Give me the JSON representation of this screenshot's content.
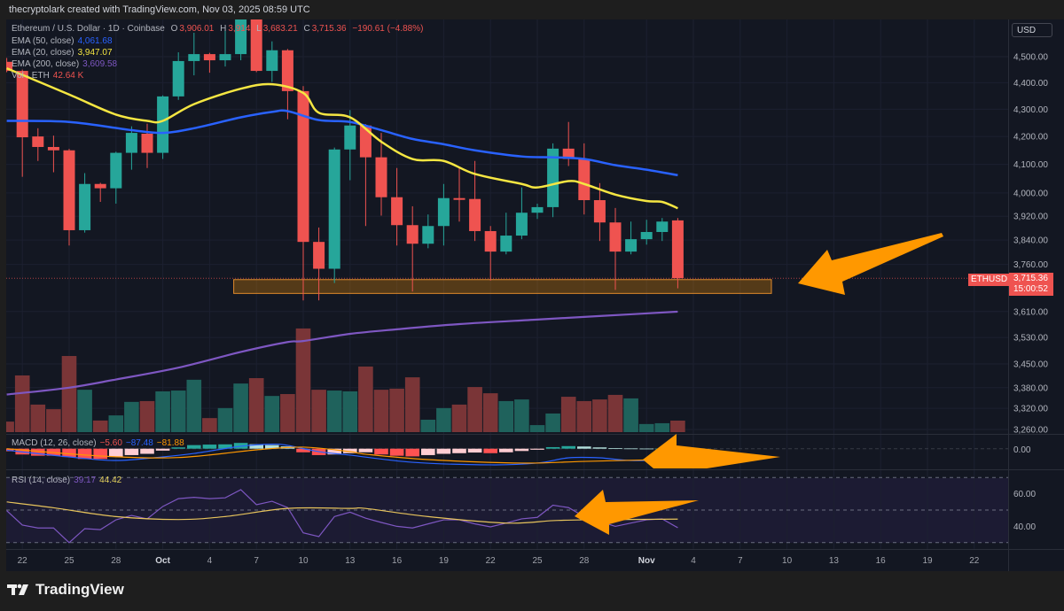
{
  "header": {
    "credit": "thecryptolark created with TradingView.com, Nov 03, 2025 08:59 UTC"
  },
  "legend": {
    "symbol": "Ethereum / U.S. Dollar · 1D · Coinbase",
    "open_label": "O",
    "open": "3,906.01",
    "high_label": "H",
    "high": "3,914",
    "low_label": "L",
    "low": "3,683.21",
    "close_label": "C",
    "close": "3,715.36",
    "change": "−190.61 (−4.88%)",
    "ema50_label": "EMA (50, close)",
    "ema50": "4,061.68",
    "ema20_label": "EMA (20, close)",
    "ema20": "3,947.07",
    "ema200_label": "EMA (200, close)",
    "ema200": "3,609.58",
    "vol_label": "Vol · ETH",
    "vol": "42.64 K",
    "macd_label": "MACD (12, 26, close)",
    "macd_hist": "−5.60",
    "macd_line": "−87.48",
    "macd_signal": "−81.88",
    "rsi_label": "RSI (14, close)",
    "rsi": "39.17",
    "rsi_ma": "44.42"
  },
  "currency": "USD",
  "price_tag": {
    "symbol": "ETHUSD",
    "price": "3,715.36",
    "countdown": "15:00:52"
  },
  "footer": {
    "brand": "TradingView"
  },
  "colors": {
    "up": "#26a69a",
    "down": "#ef5350",
    "ema20": "#f5e642",
    "ema50": "#2962ff",
    "ema200": "#7e57c2",
    "annotation": "#ff9800",
    "macd": "#2962ff",
    "signal": "#ff9800",
    "rsi": "#7e57c2",
    "rsi_ma": "#e6c35c"
  },
  "chart_data": {
    "type": "candlestick",
    "price_scale": "log",
    "dates": [
      "Sep 21",
      "Sep 22",
      "Sep 23",
      "Sep 24",
      "Sep 25",
      "Sep 26",
      "Sep 27",
      "Sep 28",
      "Sep 29",
      "Sep 30",
      "Oct 1",
      "Oct 2",
      "Oct 3",
      "Oct 4",
      "Oct 5",
      "Oct 6",
      "Oct 7",
      "Oct 8",
      "Oct 9",
      "Oct 10",
      "Oct 11",
      "Oct 12",
      "Oct 13",
      "Oct 14",
      "Oct 15",
      "Oct 16",
      "Oct 17",
      "Oct 18",
      "Oct 19",
      "Oct 20",
      "Oct 21",
      "Oct 22",
      "Oct 23",
      "Oct 24",
      "Oct 25",
      "Oct 26",
      "Oct 27",
      "Oct 28",
      "Oct 29",
      "Oct 30",
      "Oct 31",
      "Nov 1",
      "Nov 2",
      "Nov 3"
    ],
    "ohlc": [
      [
        4480,
        4495,
        4440,
        4445
      ],
      [
        4445,
        4450,
        4056,
        4197
      ],
      [
        4200,
        4230,
        4112,
        4162
      ],
      [
        4162,
        4203,
        4072,
        4150
      ],
      [
        4150,
        4155,
        3822,
        3873
      ],
      [
        3873,
        4069,
        3865,
        4031
      ],
      [
        4031,
        4035,
        3969,
        4016
      ],
      [
        4016,
        4145,
        3963,
        4141
      ],
      [
        4141,
        4237,
        4081,
        4213
      ],
      [
        4210,
        4247,
        4087,
        4141
      ],
      [
        4141,
        4352,
        4119,
        4348
      ],
      [
        4348,
        4517,
        4335,
        4483
      ],
      [
        4483,
        4594,
        4428,
        4510
      ],
      [
        4510,
        4515,
        4438,
        4486
      ],
      [
        4486,
        4605,
        4462,
        4510
      ],
      [
        4510,
        4682,
        4486,
        4654
      ],
      [
        4654,
        4675,
        4440,
        4445
      ],
      [
        4445,
        4560,
        4403,
        4525
      ],
      [
        4525,
        4530,
        4263,
        4368
      ],
      [
        4368,
        4387,
        3645,
        3834
      ],
      [
        3834,
        3882,
        3645,
        3746
      ],
      [
        3746,
        4160,
        3700,
        4153
      ],
      [
        4153,
        4297,
        4044,
        4240
      ],
      [
        4240,
        4245,
        3887,
        4125
      ],
      [
        4125,
        4213,
        3922,
        3985
      ],
      [
        3985,
        4087,
        3822,
        3890
      ],
      [
        3890,
        3954,
        3673,
        3828
      ],
      [
        3828,
        3926,
        3813,
        3887
      ],
      [
        3887,
        4031,
        3822,
        3982
      ],
      [
        3982,
        4087,
        3902,
        3976
      ],
      [
        3979,
        4112,
        3837,
        3870
      ],
      [
        3870,
        3887,
        3708,
        3802
      ],
      [
        3802,
        3932,
        3793,
        3855
      ],
      [
        3855,
        4019,
        3843,
        3932
      ],
      [
        3932,
        3963,
        3911,
        3951
      ],
      [
        3951,
        4175,
        3917,
        4156
      ],
      [
        4156,
        4253,
        4094,
        4119
      ],
      [
        4119,
        4175,
        3926,
        3975
      ],
      [
        3975,
        4034,
        3837,
        3899
      ],
      [
        3899,
        3948,
        3678,
        3802
      ],
      [
        3802,
        3902,
        3793,
        3843
      ],
      [
        3843,
        3908,
        3825,
        3867
      ],
      [
        3867,
        3914,
        3837,
        3902
      ],
      [
        3906.01,
        3914,
        3683.21,
        3715.36
      ]
    ],
    "volume_k": [
      39,
      210,
      102,
      85,
      282,
      157,
      43,
      62,
      112,
      115,
      151,
      154,
      194,
      52,
      89,
      180,
      200,
      134,
      141,
      384,
      157,
      154,
      151,
      243,
      157,
      161,
      203,
      46,
      89,
      102,
      167,
      144,
      115,
      121,
      26,
      69,
      131,
      115,
      121,
      138,
      125,
      30,
      33,
      42.64
    ],
    "ema20": [
      [
        "Sep 21",
        4455
      ],
      [
        "Sep 25",
        4355
      ],
      [
        "Sep 28",
        4280
      ],
      [
        "Sep 30",
        4257
      ],
      [
        "Oct 1",
        4257
      ],
      [
        "Oct 3",
        4319
      ],
      [
        "Oct 6",
        4377
      ],
      [
        "Oct 8",
        4394
      ],
      [
        "Oct 10",
        4361
      ],
      [
        "Oct 11",
        4287
      ],
      [
        "Oct 13",
        4270
      ],
      [
        "Oct 15",
        4181
      ],
      [
        "Oct 17",
        4119
      ],
      [
        "Oct 19",
        4112
      ],
      [
        "Oct 21",
        4066
      ],
      [
        "Oct 24",
        4031
      ],
      [
        "Oct 25",
        4019
      ],
      [
        "Oct 27",
        4041
      ],
      [
        "Oct 28",
        4031
      ],
      [
        "Oct 30",
        3994
      ],
      [
        "Nov 1",
        3972
      ],
      [
        "Nov 2",
        3969
      ],
      [
        "Nov 3",
        3947.07
      ]
    ],
    "ema50": [
      [
        "Sep 21",
        4257
      ],
      [
        "Sep 25",
        4253
      ],
      [
        "Sep 29",
        4223
      ],
      [
        "Oct 1",
        4213
      ],
      [
        "Oct 3",
        4230
      ],
      [
        "Oct 6",
        4270
      ],
      [
        "Oct 8",
        4290
      ],
      [
        "Oct 9",
        4293
      ],
      [
        "Oct 11",
        4260
      ],
      [
        "Oct 13",
        4253
      ],
      [
        "Oct 15",
        4223
      ],
      [
        "Oct 17",
        4191
      ],
      [
        "Oct 19",
        4172
      ],
      [
        "Oct 21",
        4150
      ],
      [
        "Oct 24",
        4128
      ],
      [
        "Oct 26",
        4125
      ],
      [
        "Oct 28",
        4119
      ],
      [
        "Oct 30",
        4097
      ],
      [
        "Nov 1",
        4081
      ],
      [
        "Nov 3",
        4061.68
      ]
    ],
    "ema200": [
      [
        "Sep 21",
        3360
      ],
      [
        "Sep 25",
        3380
      ],
      [
        "Sep 28",
        3404
      ],
      [
        "Oct 2",
        3439
      ],
      [
        "Oct 6",
        3486
      ],
      [
        "Oct 9",
        3516
      ],
      [
        "Oct 10",
        3519
      ],
      [
        "Oct 13",
        3541
      ],
      [
        "Oct 16",
        3555
      ],
      [
        "Oct 20",
        3571
      ],
      [
        "Oct 25",
        3585
      ],
      [
        "Oct 29",
        3596
      ],
      [
        "Nov 3",
        3609.58
      ]
    ],
    "macd_hist": [
      -20,
      -45,
      -55,
      -55,
      -65,
      -80,
      -80,
      -65,
      -50,
      -40,
      -15,
      10,
      28,
      32,
      34,
      45,
      35,
      28,
      18,
      -28,
      -50,
      -45,
      -35,
      -28,
      -45,
      -55,
      -60,
      -50,
      -40,
      -35,
      -30,
      -35,
      -28,
      -18,
      -8,
      12,
      20,
      17,
      10,
      4,
      2,
      1,
      1,
      -5.6
    ],
    "macd_line": [
      [
        "Sep 21",
        -12
      ],
      [
        "Sep 25",
        -64
      ],
      [
        "Sep 28",
        -92
      ],
      [
        "Oct 1",
        -64
      ],
      [
        "Oct 3",
        -37
      ],
      [
        "Oct 6",
        19
      ],
      [
        "Oct 8",
        35
      ],
      [
        "Oct 9",
        26
      ],
      [
        "Oct 11",
        -23
      ],
      [
        "Oct 13",
        -50
      ],
      [
        "Oct 17",
        -106
      ],
      [
        "Oct 22",
        -126
      ],
      [
        "Oct 25",
        -112
      ],
      [
        "Oct 27",
        -71
      ],
      [
        "Oct 29",
        -71
      ],
      [
        "Oct 31",
        -92
      ],
      [
        "Nov 3",
        -87.48
      ]
    ],
    "macd_signal": [
      [
        "Sep 21",
        0
      ],
      [
        "Sep 27",
        -57
      ],
      [
        "Oct 2",
        -69
      ],
      [
        "Oct 7",
        -9
      ],
      [
        "Oct 10",
        12
      ],
      [
        "Oct 13",
        -23
      ],
      [
        "Oct 14",
        -43
      ],
      [
        "Oct 18",
        -85
      ],
      [
        "Oct 24",
        -112
      ],
      [
        "Oct 28",
        -99
      ],
      [
        "Nov 3",
        -81.88
      ]
    ],
    "rsi": [
      49.6,
      40.8,
      39,
      39,
      30,
      38.6,
      38,
      44,
      46.7,
      44.6,
      52.2,
      57,
      57.8,
      57,
      57.5,
      62.5,
      53.3,
      55.4,
      51.5,
      36,
      33.7,
      46,
      48.7,
      45,
      42.4,
      40,
      39,
      41.5,
      44,
      44,
      41.5,
      39.7,
      42,
      44.6,
      45.5,
      53,
      51.5,
      46,
      43,
      40,
      42,
      44,
      44.6,
      39.17
    ],
    "rsi_ma": [
      [
        "Sep 21",
        55
      ],
      [
        "Sep 24",
        51.4
      ],
      [
        "Sep 28",
        46
      ],
      [
        "Oct 2",
        44.2
      ],
      [
        "Oct 5",
        46
      ],
      [
        "Oct 9",
        51
      ],
      [
        "Oct 13",
        51
      ],
      [
        "Oct 14",
        51
      ],
      [
        "Oct 18",
        46
      ],
      [
        "Oct 23",
        42
      ],
      [
        "Oct 26",
        43.5
      ],
      [
        "Oct 28",
        44
      ],
      [
        "Nov 3",
        44.42
      ]
    ],
    "rsi_bands": [
      70,
      50,
      30
    ],
    "support_zone": {
      "from": "Oct 6",
      "to": "Nov 9",
      "low": 3667,
      "high": 3711
    },
    "price_ticks": [
      "4,500.00",
      "4,400.00",
      "4,300.00",
      "4,200.00",
      "4,100.00",
      "4,000.00",
      "3,920.00",
      "3,840.00",
      "3,760.00",
      "3,610.00",
      "3,530.00",
      "3,450.00",
      "3,380.00",
      "3,320.00",
      "3,260.00"
    ],
    "macd_ticks": [
      "0.00"
    ],
    "rsi_ticks": [
      "60.00",
      "40.00"
    ],
    "time_ticks": [
      [
        "22",
        "Sep 22"
      ],
      [
        "25",
        "Sep 25"
      ],
      [
        "28",
        "Sep 28"
      ],
      [
        "Oct",
        "Oct 1"
      ],
      [
        "4",
        "Oct 4"
      ],
      [
        "7",
        "Oct 7"
      ],
      [
        "10",
        "Oct 10"
      ],
      [
        "13",
        "Oct 13"
      ],
      [
        "16",
        "Oct 16"
      ],
      [
        "19",
        "Oct 19"
      ],
      [
        "22",
        "Oct 22"
      ],
      [
        "25",
        "Oct 25"
      ],
      [
        "28",
        "Oct 28"
      ],
      [
        "Nov",
        "Nov 1"
      ],
      [
        "4",
        "Nov 4"
      ],
      [
        "7",
        "Nov 7"
      ],
      [
        "10",
        "Nov 10"
      ],
      [
        "13",
        "Nov 13"
      ],
      [
        "16",
        "Nov 16"
      ],
      [
        "19",
        "Nov 19"
      ],
      [
        "22",
        "Nov 22"
      ]
    ]
  }
}
